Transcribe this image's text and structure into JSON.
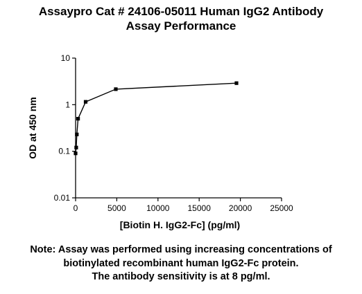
{
  "chart_data": {
    "type": "line",
    "title_lines": [
      "Assaypro Cat # 24106-05011 Human IgG2 Antibody",
      "Assay Performance"
    ],
    "xlabel": "[Biotin H. IgG2-Fc] (pg/ml)",
    "ylabel": "OD at 450 nm",
    "xlim": [
      0,
      25000
    ],
    "ylim": [
      0.01,
      10
    ],
    "yscale": "log",
    "x_ticks": [
      0,
      5000,
      10000,
      15000,
      20000,
      25000
    ],
    "x_tick_labels": [
      "0",
      "5000",
      "10000",
      "15000",
      "20000",
      "25000"
    ],
    "y_ticks": [
      0.01,
      0.1,
      1,
      10
    ],
    "y_tick_labels": [
      "0.01",
      "0.1",
      "1",
      "10"
    ],
    "series": [
      {
        "x": [
          0,
          76,
          153,
          305,
          1220,
          4880,
          19531
        ],
        "y": [
          0.09,
          0.12,
          0.23,
          0.5,
          1.15,
          2.15,
          2.9
        ]
      }
    ],
    "grid": false
  },
  "note_lines": [
    "Note: Assay was performed using increasing concentrations of",
    "biotinylated recombinant human IgG2-Fc protein.",
    "The antibody sensitivity is at 8 pg/ml."
  ]
}
